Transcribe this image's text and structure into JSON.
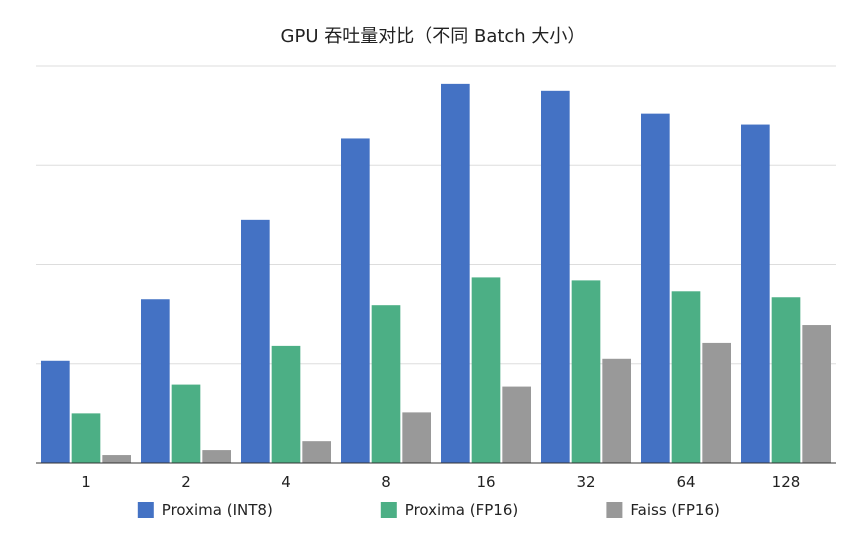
{
  "chart_data": {
    "type": "bar",
    "title": "GPU 吞吐量对比（不同 Batch 大小）",
    "xlabel": "",
    "ylabel": "",
    "categories": [
      "1",
      "2",
      "4",
      "8",
      "16",
      "32",
      "64",
      "128"
    ],
    "series": [
      {
        "name": "Proxima (INT8)",
        "color": "#4472c4",
        "values": [
          1.03,
          1.65,
          2.45,
          3.27,
          3.82,
          3.75,
          3.52,
          3.41
        ]
      },
      {
        "name": "Proxima (FP16)",
        "color": "#4caf85",
        "values": [
          0.5,
          0.79,
          1.18,
          1.59,
          1.87,
          1.84,
          1.73,
          1.67
        ]
      },
      {
        "name": "Faiss (FP16)",
        "color": "#999999",
        "values": [
          0.08,
          0.13,
          0.22,
          0.51,
          0.77,
          1.05,
          1.21,
          1.39
        ]
      }
    ],
    "ylim": [
      0,
      4
    ],
    "grid": true,
    "y_tick_labels_shown": false,
    "legend_position": "bottom"
  }
}
